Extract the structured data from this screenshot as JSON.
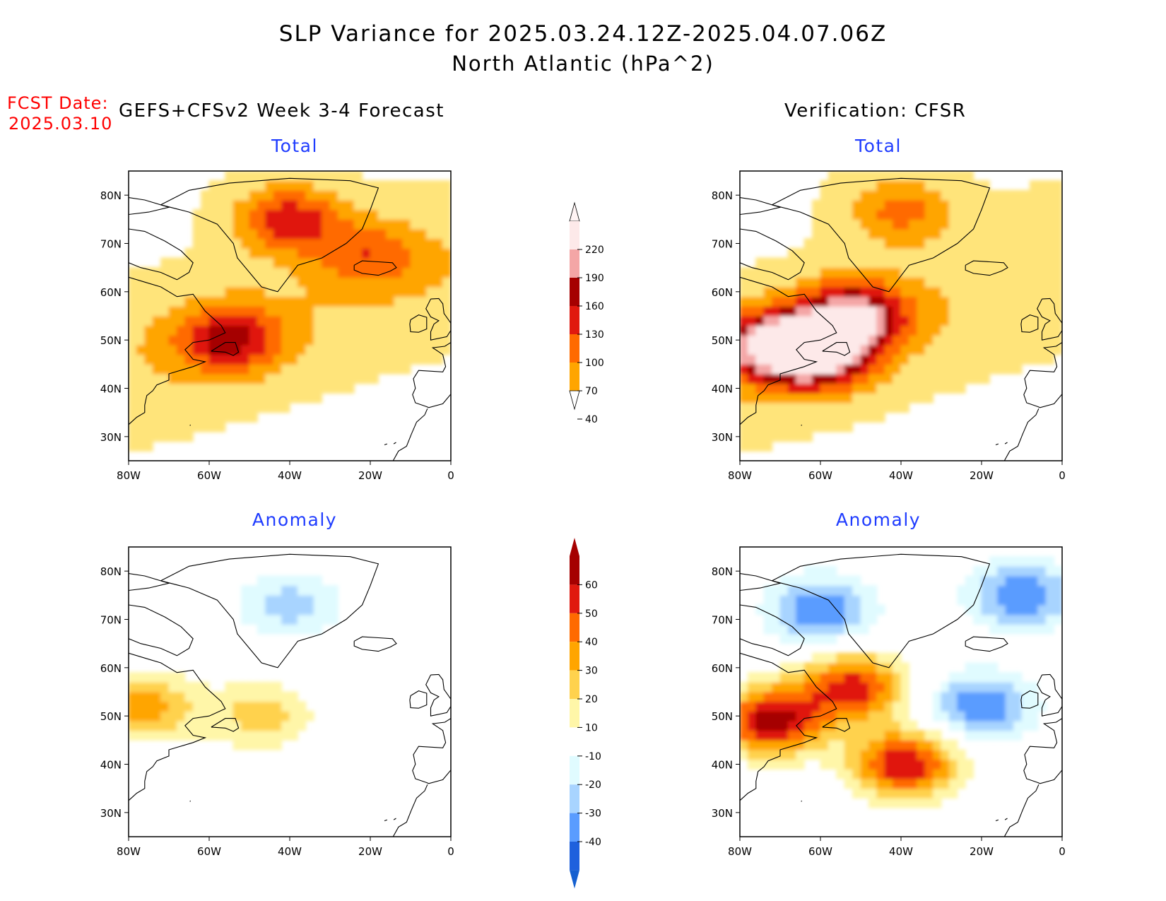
{
  "title_line1": "SLP Variance for 2025.03.24.12Z-2025.04.07.06Z",
  "title_line2": "North Atlantic (hPa^2)",
  "fcst_label": "FCST Date:",
  "fcst_date": "2025.03.10",
  "left_header": "GEFS+CFSv2 Week 3-4 Forecast",
  "right_header": "Verification: CFSR",
  "panel_titles": {
    "total": "Total",
    "anomaly": "Anomaly"
  },
  "colors": {
    "total_levels": [
      "#ffe47a",
      "#ffa500",
      "#ff6a00",
      "#e0190f",
      "#a50000",
      "#f4a6a6",
      "#fde9e9"
    ],
    "anomaly_pos": [
      "#fff6a8",
      "#ffd24d",
      "#ffa500",
      "#ff6a00",
      "#e0190f",
      "#a50000"
    ],
    "anomaly_neg": [
      "#e0fbff",
      "#a8d4ff",
      "#5a9cff",
      "#1e60dd",
      "#1560d0"
    ]
  },
  "chart_data": [
    {
      "type": "heatmap",
      "name": "GEFS+CFSv2 Week 3-4 Forecast — Total",
      "title": "Total",
      "x_ticks": [
        "80W",
        "60W",
        "40W",
        "20W",
        "0"
      ],
      "y_ticks": [
        "30N",
        "40N",
        "50N",
        "60N",
        "70N",
        "80N"
      ],
      "xlim": [
        -80,
        0
      ],
      "ylim": [
        25,
        85
      ],
      "levels": [
        40,
        70,
        100,
        130,
        160,
        190,
        220
      ],
      "features": [
        {
          "lon": -55,
          "lat": 50,
          "max": 150
        },
        {
          "lon": -40,
          "lat": 75,
          "max": 150
        },
        {
          "lon": -20,
          "lat": 68,
          "max": 105
        }
      ]
    },
    {
      "type": "heatmap",
      "name": "Verification: CFSR — Total",
      "title": "Total",
      "x_ticks": [
        "80W",
        "60W",
        "40W",
        "20W",
        "0"
      ],
      "y_ticks": [
        "30N",
        "40N",
        "50N",
        "60N",
        "70N",
        "80N"
      ],
      "xlim": [
        -80,
        0
      ],
      "ylim": [
        25,
        85
      ],
      "levels": [
        40,
        70,
        100,
        130,
        160,
        190,
        220
      ],
      "features": [
        {
          "lon": -72,
          "lat": 49,
          "max": 205
        },
        {
          "lon": -52,
          "lat": 55,
          "max": 205
        },
        {
          "lon": -60,
          "lat": 47,
          "max": 200
        },
        {
          "lon": -40,
          "lat": 77,
          "max": 110
        }
      ]
    },
    {
      "type": "heatmap",
      "name": "GEFS+CFSv2 Week 3-4 Forecast — Anomaly",
      "title": "Anomaly",
      "x_ticks": [
        "80W",
        "60W",
        "40W",
        "20W",
        "0"
      ],
      "y_ticks": [
        "30N",
        "40N",
        "50N",
        "60N",
        "70N",
        "80N"
      ],
      "xlim": [
        -80,
        0
      ],
      "ylim": [
        25,
        85
      ],
      "levels": [
        -40,
        -30,
        -20,
        -10,
        10,
        20,
        30,
        40,
        50,
        60
      ],
      "features": [
        {
          "lon": -76,
          "lat": 52,
          "max": 35
        },
        {
          "lon": -47,
          "lat": 50,
          "max": 25
        },
        {
          "lon": -40,
          "lat": 73,
          "max": -25
        }
      ]
    },
    {
      "type": "heatmap",
      "name": "Verification: CFSR — Anomaly",
      "title": "Anomaly",
      "x_ticks": [
        "80W",
        "60W",
        "40W",
        "20W",
        "0"
      ],
      "y_ticks": [
        "30N",
        "40N",
        "50N",
        "60N",
        "70N",
        "80N"
      ],
      "xlim": [
        -80,
        0
      ],
      "ylim": [
        25,
        85
      ],
      "levels": [
        -40,
        -30,
        -20,
        -10,
        10,
        20,
        30,
        40,
        50,
        60
      ],
      "features": [
        {
          "lon": -72,
          "lat": 49,
          "max": 65
        },
        {
          "lon": -52,
          "lat": 56,
          "max": 55
        },
        {
          "lon": -39,
          "lat": 40,
          "max": 60
        },
        {
          "lon": -60,
          "lat": 72,
          "max": -40
        },
        {
          "lon": -20,
          "lat": 52,
          "max": -40
        },
        {
          "lon": -10,
          "lat": 75,
          "max": -40
        }
      ]
    }
  ],
  "colorbars": {
    "total": {
      "labels": [
        "220",
        "190",
        "160",
        "130",
        "100",
        "70",
        "40"
      ]
    },
    "anomaly": {
      "labels": [
        "60",
        "50",
        "40",
        "30",
        "20",
        "10",
        "-10",
        "-20",
        "-30",
        "-40"
      ]
    }
  }
}
